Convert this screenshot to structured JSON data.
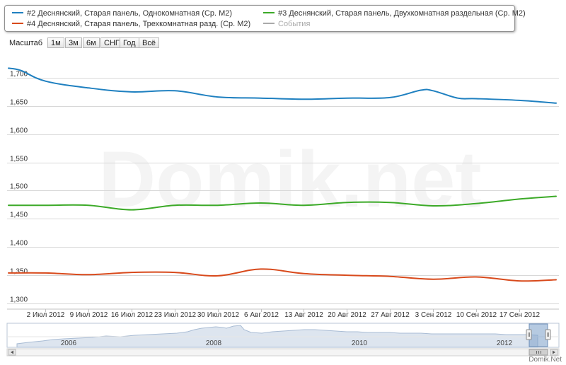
{
  "legend": {
    "items": [
      {
        "label": "#2 Деснянский, Старая панель, Однокомнатная (Ср. М2)",
        "color": "#1f80c0",
        "enabled": true
      },
      {
        "label": "#3 Деснянский, Старая панель, Двухкомнатная раздельная (Ср. М2)",
        "color": "#3caa28",
        "enabled": true
      },
      {
        "label": "#4 Деснянский, Старая панель, Трехкомнатная разд. (Ср. М2)",
        "color": "#d84a1c",
        "enabled": true
      },
      {
        "label": "События",
        "color": "#aaaaaa",
        "enabled": false
      }
    ]
  },
  "zoom": {
    "label": "Масштаб",
    "buttons": [
      "1м",
      "3м",
      "6м",
      "СНГ",
      "Год",
      "Всё"
    ]
  },
  "watermark": "Domik.net",
  "credits": "Domik.Net",
  "chart_data": {
    "type": "line",
    "x_start": "2012-06-26",
    "x_end": "2012-09-23",
    "x_ticks": [
      "2 Июл 2012",
      "9 Июл 2012",
      "16 Июл 2012",
      "23 Июл 2012",
      "30 Июл 2012",
      "6 Авг 2012",
      "13 Авг 2012",
      "20 Авг 2012",
      "27 Авг 2012",
      "3 Сен 2012",
      "10 Сен 2012",
      "17 Сен 2012"
    ],
    "x_tick_dates": [
      "2012-07-02",
      "2012-07-09",
      "2012-07-16",
      "2012-07-23",
      "2012-07-30",
      "2012-08-06",
      "2012-08-13",
      "2012-08-20",
      "2012-08-27",
      "2012-09-03",
      "2012-09-10",
      "2012-09-17"
    ],
    "y_ticks": [
      1300,
      1350,
      1400,
      1450,
      1500,
      1550,
      1600,
      1650,
      1700
    ],
    "y_tick_labels": [
      "1,300",
      "1,350",
      "1,400",
      "1,450",
      "1,500",
      "1,550",
      "1,600",
      "1,650",
      "1,700"
    ],
    "ylim": [
      1290,
      1725
    ],
    "grid": true,
    "series": [
      {
        "name": "#2 Деснянский, Старая панель, Однокомнатная (Ср. М2)",
        "color": "#1f80c0",
        "points": [
          [
            "2012-06-26",
            1717
          ],
          [
            "2012-06-28",
            1713
          ],
          [
            "2012-07-02",
            1694
          ],
          [
            "2012-07-09",
            1682
          ],
          [
            "2012-07-16",
            1675
          ],
          [
            "2012-07-23",
            1677
          ],
          [
            "2012-07-30",
            1666
          ],
          [
            "2012-08-06",
            1664
          ],
          [
            "2012-08-13",
            1662
          ],
          [
            "2012-08-20",
            1664
          ],
          [
            "2012-08-27",
            1665
          ],
          [
            "2012-09-01",
            1678
          ],
          [
            "2012-09-03",
            1677
          ],
          [
            "2012-09-07",
            1664
          ],
          [
            "2012-09-10",
            1663
          ],
          [
            "2012-09-17",
            1660
          ],
          [
            "2012-09-23",
            1655
          ]
        ]
      },
      {
        "name": "#3 Деснянский, Старая панель, Двухкомнатная раздельная (Ср. М2)",
        "color": "#3caa28",
        "points": [
          [
            "2012-06-26",
            1474
          ],
          [
            "2012-07-02",
            1474
          ],
          [
            "2012-07-09",
            1474
          ],
          [
            "2012-07-16",
            1466
          ],
          [
            "2012-07-23",
            1474
          ],
          [
            "2012-07-30",
            1474
          ],
          [
            "2012-08-06",
            1478
          ],
          [
            "2012-08-13",
            1474
          ],
          [
            "2012-08-20",
            1479
          ],
          [
            "2012-08-27",
            1479
          ],
          [
            "2012-09-03",
            1473
          ],
          [
            "2012-09-10",
            1477
          ],
          [
            "2012-09-17",
            1485
          ],
          [
            "2012-09-23",
            1490
          ]
        ]
      },
      {
        "name": "#4 Деснянский, Старая панель, Трехкомнатная разд. (Ср. М2)",
        "color": "#d84a1c",
        "points": [
          [
            "2012-06-26",
            1354
          ],
          [
            "2012-07-02",
            1354
          ],
          [
            "2012-07-09",
            1351
          ],
          [
            "2012-07-16",
            1355
          ],
          [
            "2012-07-23",
            1355
          ],
          [
            "2012-07-30",
            1349
          ],
          [
            "2012-08-06",
            1361
          ],
          [
            "2012-08-13",
            1353
          ],
          [
            "2012-08-20",
            1350
          ],
          [
            "2012-08-27",
            1348
          ],
          [
            "2012-09-03",
            1343
          ],
          [
            "2012-09-10",
            1347
          ],
          [
            "2012-09-17",
            1340
          ],
          [
            "2012-09-23",
            1342
          ]
        ]
      }
    ]
  },
  "navigator": {
    "labels": [
      "2006",
      "2008",
      "2010",
      "2012"
    ]
  }
}
